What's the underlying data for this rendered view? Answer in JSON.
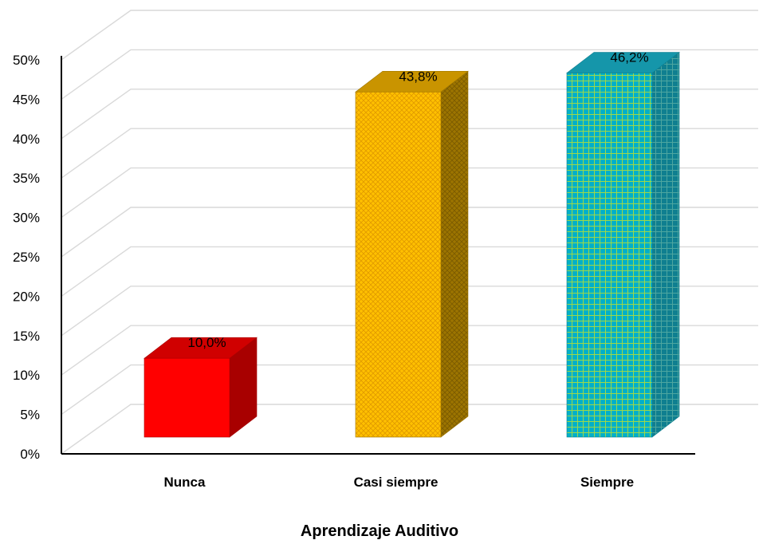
{
  "chart_data": {
    "type": "bar",
    "style": "3d-column",
    "categories": [
      "Nunca",
      "Casi siempre",
      "Siempre"
    ],
    "values": [
      10.0,
      43.8,
      46.2
    ],
    "data_labels": [
      "10,0%",
      "43,8%",
      "46,2%"
    ],
    "colors": [
      "#ff0000",
      "#ffc000",
      "#00b0c8"
    ],
    "side_colors": [
      "#a80000",
      "#9c7400",
      "#0f7f90"
    ],
    "top_colors": [
      "#d00000",
      "#c99400",
      "#1596aa"
    ],
    "title": "",
    "xlabel": "Aprendizaje Auditivo",
    "ylabel": "",
    "ylim": [
      0,
      50
    ],
    "y_ticks": [
      "0%",
      "5%",
      "10%",
      "15%",
      "20%",
      "25%",
      "30%",
      "35%",
      "40%",
      "45%",
      "50%"
    ],
    "grid": true,
    "legend": "none"
  }
}
